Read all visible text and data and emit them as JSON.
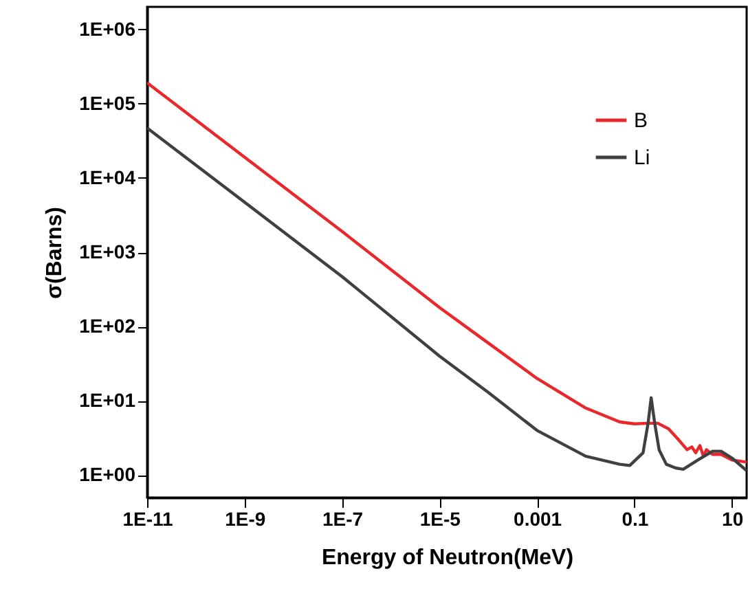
{
  "chart_data": {
    "type": "line",
    "xlabel": "Energy of Neutron(MeV)",
    "ylabel": "σ(Barns)",
    "log": "xy",
    "legend": "top right",
    "grid": false,
    "marker": "none",
    "line_style": "solid",
    "xlim": [
      1e-11,
      20
    ],
    "ylim": [
      0.5,
      2000000
    ],
    "xticks": [
      {
        "value": 1e-11,
        "label": "1E-11"
      },
      {
        "value": 1e-09,
        "label": "1E-9"
      },
      {
        "value": 1e-07,
        "label": "1E-7"
      },
      {
        "value": 1e-05,
        "label": "1E-5"
      },
      0.001,
      0.1,
      10
    ],
    "yticks": [
      {
        "value": 1,
        "label": "1E+00"
      },
      {
        "value": 10,
        "label": "1E+01"
      },
      {
        "value": 100,
        "label": "1E+02"
      },
      {
        "value": 1000,
        "label": "1E+03"
      },
      {
        "value": 10000,
        "label": "1E+04"
      },
      {
        "value": 100000,
        "label": "1E+05"
      },
      {
        "value": 1000000,
        "label": "1E+06"
      }
    ],
    "series": [
      {
        "name": "B",
        "color": "#e8282b",
        "x": [
          1e-11,
          1e-09,
          1e-07,
          1e-05,
          0.0001,
          0.001,
          0.01,
          0.05,
          0.1,
          0.2,
          0.3,
          0.5,
          0.8,
          1.2,
          1.5,
          1.8,
          2.2,
          2.6,
          3,
          4,
          6,
          10,
          20
        ],
        "values": [
          190000,
          19000,
          1900,
          180,
          60,
          20,
          8,
          5.2,
          4.9,
          5,
          5,
          4.2,
          3,
          2.2,
          2.4,
          2,
          2.5,
          1.8,
          2.2,
          1.9,
          1.9,
          1.6,
          1.5
        ]
      },
      {
        "name": "Li",
        "color": "#404040",
        "x": [
          1e-11,
          1e-09,
          1e-07,
          1e-05,
          0.0001,
          0.001,
          0.01,
          0.05,
          0.08,
          0.15,
          0.19,
          0.22,
          0.26,
          0.32,
          0.45,
          0.7,
          1,
          2,
          4,
          6,
          10,
          20
        ],
        "values": [
          47000,
          4700,
          470,
          40,
          13,
          4,
          1.8,
          1.4,
          1.35,
          2,
          5,
          11,
          5,
          2.2,
          1.4,
          1.25,
          1.2,
          1.6,
          2.1,
          2.1,
          1.7,
          1.15
        ]
      }
    ]
  }
}
